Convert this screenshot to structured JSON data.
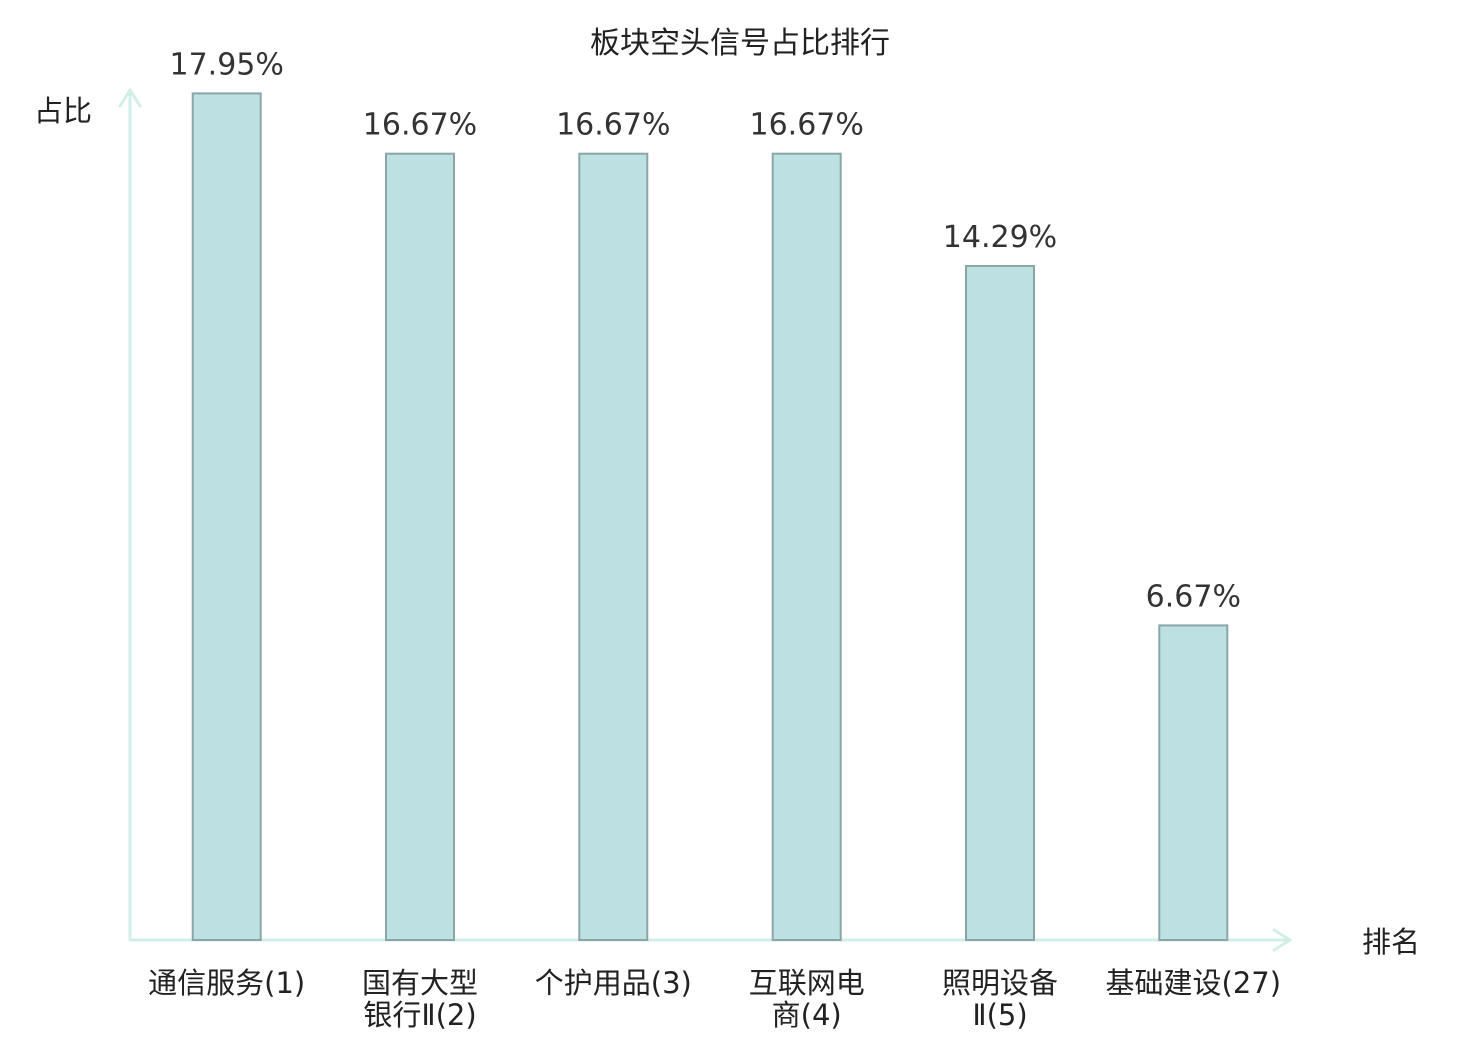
{
  "chart_data": {
    "type": "bar",
    "title": "板块空头信号占比排行",
    "ylabel": "占比",
    "xlabel": "排名",
    "categories": [
      "通信服务(1)",
      "国有大型银行Ⅱ(2)",
      "个护用品(3)",
      "互联网电商(4)",
      "照明设备Ⅱ(5)",
      "基础建设(27)"
    ],
    "values": [
      17.95,
      16.67,
      16.67,
      16.67,
      14.29,
      6.67
    ],
    "data_labels": [
      "17.95%",
      "16.67%",
      "16.67%",
      "16.67%",
      "14.29%",
      "6.67%"
    ],
    "ylim": [
      0,
      18
    ],
    "grid": false,
    "legend": false,
    "highlight_index": 5
  },
  "colors": {
    "bar_fill": "#bde1e3",
    "bar_stroke": "#8aa5a7",
    "axis": "#d2eee8",
    "value_text": "#333333",
    "category_text": "#222222",
    "highlight": "#e1262b"
  }
}
